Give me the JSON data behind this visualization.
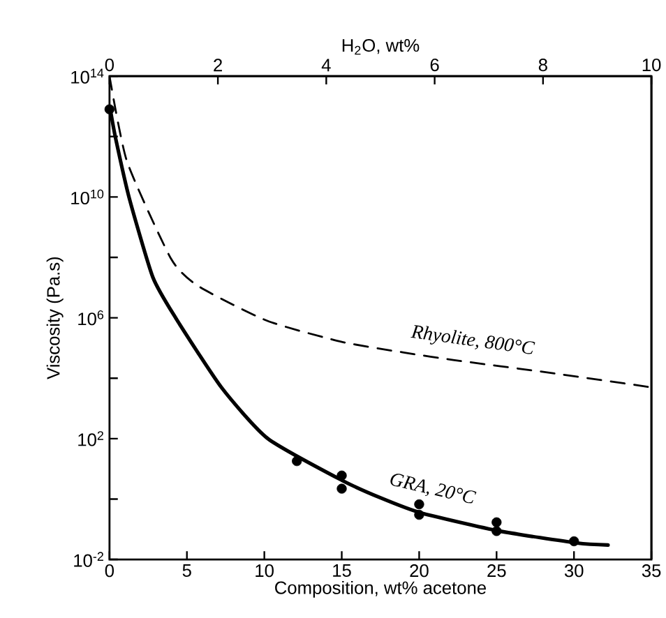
{
  "chart_data": {
    "type": "line",
    "xlabel": "Composition, wt% acetone",
    "ylabel": "Viscosity (Pa.s)",
    "x2label": "H$_{2}$O, wt%",
    "xlim": [
      0,
      35
    ],
    "xticks": [
      0,
      5,
      10,
      15,
      20,
      25,
      30,
      35
    ],
    "x2lim": [
      0,
      10
    ],
    "x2ticks": [
      0,
      2,
      4,
      6,
      8,
      10
    ],
    "ylim": [
      0.01,
      100000000000000.0
    ],
    "log": "y",
    "yticks": [
      {
        "value": 0.01,
        "label": "10$^{-2}$"
      },
      {
        "value": 1,
        "label": null
      },
      {
        "value": 100,
        "label": "10$^{2}$"
      },
      {
        "value": 10000,
        "label": null
      },
      {
        "value": 1000000,
        "label": "10$^{6}$"
      },
      {
        "value": 100000000,
        "label": null
      },
      {
        "value": 10000000000,
        "label": "10$^{10}$"
      },
      {
        "value": 1000000000000,
        "label": null
      },
      {
        "value": 100000000000000,
        "label": "10$^{14}$"
      }
    ],
    "grid": false,
    "series": [
      {
        "name": "Rhyolite,  800°C",
        "color": "#000000",
        "line_style": "dashed",
        "marker": "none",
        "x": [
          0,
          1.13,
          3.97,
          5.76,
          10.2,
          15,
          19,
          22.2,
          28.1,
          35
        ],
        "values": [
          100000000000000.0,
          150000000000.0,
          91000000.0,
          11000000.0,
          790000.0,
          160000.0,
          71000.0,
          40000.0,
          16000.0,
          5000.0
        ]
      },
      {
        "name": "GRA,  20°C",
        "color": "#000000",
        "line_style": "solid",
        "marker": "none",
        "x": [
          0.05,
          0.39,
          1.28,
          2.8,
          4.27,
          7.25,
          10.23,
          15,
          17.5,
          20.1,
          25.2,
          30.2,
          32.2
        ],
        "values": [
          8000000000000.0,
          900000000000.0,
          9000000000.0,
          22000000.0,
          1000000.0,
          4800.0,
          100,
          4.2,
          1.1,
          0.35,
          0.087,
          0.035,
          0.03
        ]
      },
      {
        "type": "scatter",
        "color": "#000000",
        "marker": "circle",
        "x": [
          0,
          12.1,
          15,
          15,
          20,
          20,
          25,
          25,
          30
        ],
        "values": [
          8000000000000.0,
          18,
          6,
          2.2,
          0.67,
          0.3,
          0.17,
          0.087,
          0.04
        ]
      }
    ]
  }
}
